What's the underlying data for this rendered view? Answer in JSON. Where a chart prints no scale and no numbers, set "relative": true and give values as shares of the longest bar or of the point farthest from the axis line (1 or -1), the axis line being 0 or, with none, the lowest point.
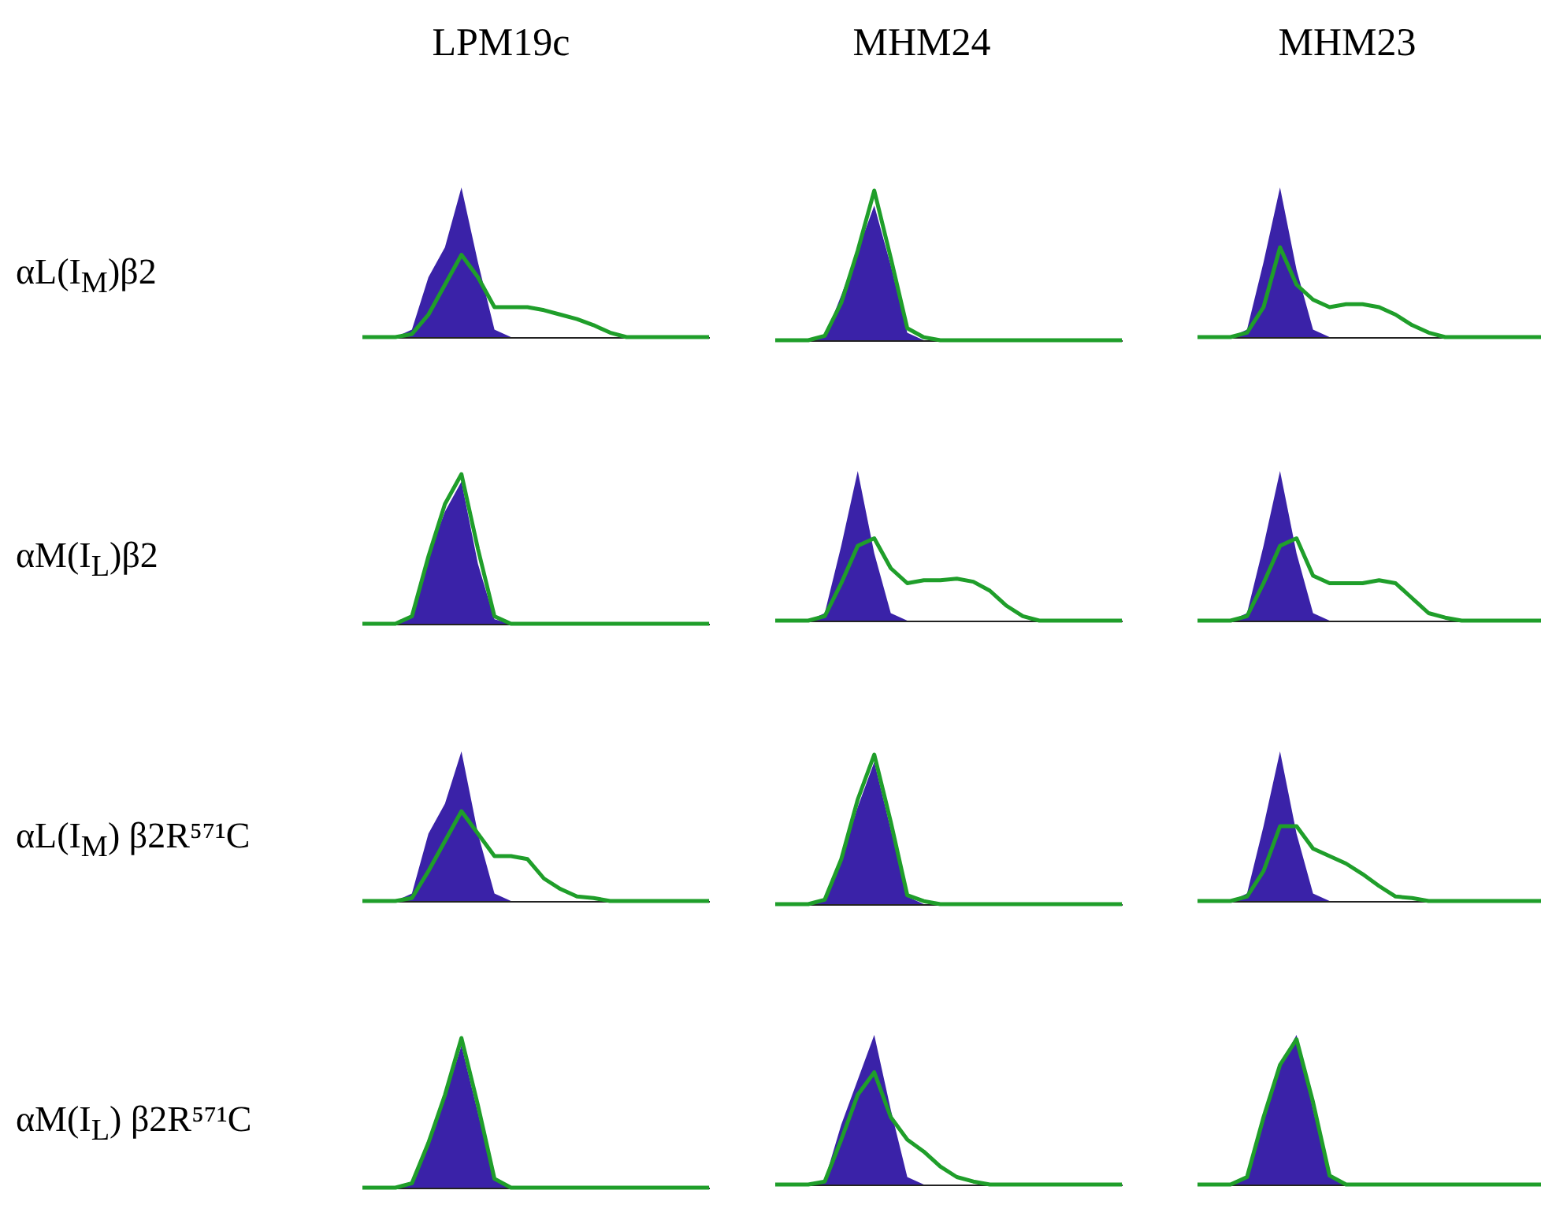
{
  "chart_data": [
    {
      "type": "area",
      "title": "LPM19c",
      "ylabel": "αL(I$_{M}$)β2",
      "relative": true,
      "tick_labels": false,
      "categories": [
        null,
        null,
        null,
        null,
        null,
        null,
        null,
        null,
        null,
        null,
        null,
        null,
        null,
        null,
        null,
        null,
        null,
        null,
        null,
        null,
        null,
        null
      ],
      "series": [
        {
          "type": "area",
          "color": "#3a22a8",
          "values": [
            0,
            0,
            0,
            0.05,
            0.4,
            0.6,
            1.0,
            0.5,
            0.05,
            0,
            0,
            0,
            0,
            0,
            0,
            0,
            0,
            0,
            0,
            0,
            0,
            0
          ]
        },
        {
          "type": "line",
          "color": "#1f9e2a",
          "values": [
            0,
            0,
            0,
            0.02,
            0.15,
            0.35,
            0.55,
            0.4,
            0.2,
            0.2,
            0.2,
            0.18,
            0.15,
            0.12,
            0.08,
            0.03,
            0,
            0,
            0,
            0,
            0,
            0
          ]
        }
      ]
    },
    {
      "type": "area",
      "title": "MHM24",
      "relative": true,
      "tick_labels": false,
      "categories": [
        null,
        null,
        null,
        null,
        null,
        null,
        null,
        null,
        null,
        null,
        null,
        null,
        null,
        null,
        null,
        null,
        null,
        null,
        null,
        null,
        null,
        null
      ],
      "series": [
        {
          "type": "area",
          "color": "#3a22a8",
          "values": [
            0,
            0,
            0,
            0.02,
            0.3,
            0.6,
            0.9,
            0.5,
            0.05,
            0,
            0,
            0,
            0,
            0,
            0,
            0,
            0,
            0,
            0,
            0,
            0,
            0
          ]
        },
        {
          "type": "line",
          "color": "#1f9e2a",
          "values": [
            0,
            0,
            0,
            0.03,
            0.25,
            0.6,
            1.0,
            0.55,
            0.08,
            0.02,
            0,
            0,
            0,
            0,
            0,
            0,
            0,
            0,
            0,
            0,
            0,
            0
          ]
        }
      ]
    },
    {
      "type": "area",
      "title": "MHM23",
      "relative": true,
      "tick_labels": false,
      "categories": [
        null,
        null,
        null,
        null,
        null,
        null,
        null,
        null,
        null,
        null,
        null,
        null,
        null,
        null,
        null,
        null,
        null,
        null,
        null,
        null,
        null,
        null
      ],
      "series": [
        {
          "type": "area",
          "color": "#3a22a8",
          "values": [
            0,
            0,
            0,
            0.05,
            0.5,
            1.0,
            0.45,
            0.05,
            0,
            0,
            0,
            0,
            0,
            0,
            0,
            0,
            0,
            0,
            0,
            0,
            0,
            0
          ]
        },
        {
          "type": "line",
          "color": "#1f9e2a",
          "values": [
            0,
            0,
            0,
            0.03,
            0.2,
            0.6,
            0.35,
            0.25,
            0.2,
            0.22,
            0.22,
            0.2,
            0.15,
            0.08,
            0.03,
            0,
            0,
            0,
            0,
            0,
            0,
            0
          ]
        }
      ]
    },
    {
      "type": "area",
      "ylabel": "αM(I$_{L}$)β2",
      "relative": true,
      "tick_labels": false,
      "categories": [
        null,
        null,
        null,
        null,
        null,
        null,
        null,
        null,
        null,
        null,
        null,
        null,
        null,
        null,
        null,
        null,
        null,
        null,
        null,
        null,
        null,
        null
      ],
      "series": [
        {
          "type": "area",
          "color": "#3a22a8",
          "values": [
            0,
            0,
            0,
            0.05,
            0.45,
            0.75,
            0.95,
            0.4,
            0.03,
            0,
            0,
            0,
            0,
            0,
            0,
            0,
            0,
            0,
            0,
            0,
            0,
            0
          ]
        },
        {
          "type": "line",
          "color": "#1f9e2a",
          "values": [
            0,
            0,
            0,
            0.05,
            0.45,
            0.8,
            1.0,
            0.5,
            0.05,
            0,
            0,
            0,
            0,
            0,
            0,
            0,
            0,
            0,
            0,
            0,
            0,
            0
          ]
        }
      ]
    },
    {
      "type": "area",
      "relative": true,
      "tick_labels": false,
      "categories": [
        null,
        null,
        null,
        null,
        null,
        null,
        null,
        null,
        null,
        null,
        null,
        null,
        null,
        null,
        null,
        null,
        null,
        null,
        null,
        null,
        null,
        null
      ],
      "series": [
        {
          "type": "area",
          "color": "#3a22a8",
          "values": [
            0,
            0,
            0,
            0.05,
            0.5,
            1.0,
            0.45,
            0.05,
            0,
            0,
            0,
            0,
            0,
            0,
            0,
            0,
            0,
            0,
            0,
            0,
            0,
            0
          ]
        },
        {
          "type": "line",
          "color": "#1f9e2a",
          "values": [
            0,
            0,
            0,
            0.03,
            0.25,
            0.5,
            0.55,
            0.35,
            0.25,
            0.27,
            0.27,
            0.28,
            0.26,
            0.2,
            0.1,
            0.03,
            0,
            0,
            0,
            0,
            0,
            0
          ]
        }
      ]
    },
    {
      "type": "area",
      "relative": true,
      "tick_labels": false,
      "categories": [
        null,
        null,
        null,
        null,
        null,
        null,
        null,
        null,
        null,
        null,
        null,
        null,
        null,
        null,
        null,
        null,
        null,
        null,
        null,
        null,
        null,
        null
      ],
      "series": [
        {
          "type": "area",
          "color": "#3a22a8",
          "values": [
            0,
            0,
            0,
            0.05,
            0.5,
            1.0,
            0.45,
            0.05,
            0,
            0,
            0,
            0,
            0,
            0,
            0,
            0,
            0,
            0,
            0,
            0,
            0,
            0
          ]
        },
        {
          "type": "line",
          "color": "#1f9e2a",
          "values": [
            0,
            0,
            0,
            0.03,
            0.25,
            0.5,
            0.55,
            0.3,
            0.25,
            0.25,
            0.25,
            0.27,
            0.25,
            0.15,
            0.05,
            0.02,
            0,
            0,
            0,
            0,
            0,
            0
          ]
        }
      ]
    },
    {
      "type": "area",
      "ylabel": "αL(I$_{M}$) β2R⁵⁷¹C",
      "relative": true,
      "tick_labels": false,
      "categories": [
        null,
        null,
        null,
        null,
        null,
        null,
        null,
        null,
        null,
        null,
        null,
        null,
        null,
        null,
        null,
        null,
        null,
        null,
        null,
        null,
        null,
        null
      ],
      "series": [
        {
          "type": "area",
          "color": "#3a22a8",
          "values": [
            0,
            0,
            0,
            0.05,
            0.45,
            0.65,
            1.0,
            0.45,
            0.05,
            0,
            0,
            0,
            0,
            0,
            0,
            0,
            0,
            0,
            0,
            0,
            0,
            0
          ]
        },
        {
          "type": "line",
          "color": "#1f9e2a",
          "values": [
            0,
            0,
            0,
            0.02,
            0.2,
            0.4,
            0.6,
            0.45,
            0.3,
            0.3,
            0.28,
            0.15,
            0.08,
            0.03,
            0.02,
            0,
            0,
            0,
            0,
            0,
            0,
            0
          ]
        }
      ]
    },
    {
      "type": "area",
      "relative": true,
      "tick_labels": false,
      "categories": [
        null,
        null,
        null,
        null,
        null,
        null,
        null,
        null,
        null,
        null,
        null,
        null,
        null,
        null,
        null,
        null,
        null,
        null,
        null,
        null,
        null,
        null
      ],
      "series": [
        {
          "type": "area",
          "color": "#3a22a8",
          "values": [
            0,
            0,
            0,
            0.03,
            0.3,
            0.65,
            0.95,
            0.5,
            0.05,
            0,
            0,
            0,
            0,
            0,
            0,
            0,
            0,
            0,
            0,
            0,
            0,
            0
          ]
        },
        {
          "type": "line",
          "color": "#1f9e2a",
          "values": [
            0,
            0,
            0,
            0.03,
            0.3,
            0.7,
            1.0,
            0.55,
            0.06,
            0.02,
            0,
            0,
            0,
            0,
            0,
            0,
            0,
            0,
            0,
            0,
            0,
            0
          ]
        }
      ]
    },
    {
      "type": "area",
      "relative": true,
      "tick_labels": false,
      "categories": [
        null,
        null,
        null,
        null,
        null,
        null,
        null,
        null,
        null,
        null,
        null,
        null,
        null,
        null,
        null,
        null,
        null,
        null,
        null,
        null,
        null,
        null
      ],
      "series": [
        {
          "type": "area",
          "color": "#3a22a8",
          "values": [
            0,
            0,
            0,
            0.05,
            0.5,
            1.0,
            0.45,
            0.05,
            0,
            0,
            0,
            0,
            0,
            0,
            0,
            0,
            0,
            0,
            0,
            0,
            0,
            0
          ]
        },
        {
          "type": "line",
          "color": "#1f9e2a",
          "values": [
            0,
            0,
            0,
            0.03,
            0.2,
            0.5,
            0.5,
            0.35,
            0.3,
            0.25,
            0.18,
            0.1,
            0.03,
            0.02,
            0,
            0,
            0,
            0,
            0,
            0,
            0,
            0
          ]
        }
      ]
    },
    {
      "type": "area",
      "ylabel": "αM(I$_{L}$) β2R⁵⁷¹C",
      "relative": true,
      "tick_labels": false,
      "categories": [
        null,
        null,
        null,
        null,
        null,
        null,
        null,
        null,
        null,
        null,
        null,
        null,
        null,
        null,
        null,
        null,
        null,
        null,
        null,
        null,
        null,
        null
      ],
      "series": [
        {
          "type": "area",
          "color": "#3a22a8",
          "values": [
            0,
            0,
            0,
            0.03,
            0.3,
            0.6,
            0.95,
            0.5,
            0.05,
            0,
            0,
            0,
            0,
            0,
            0,
            0,
            0,
            0,
            0,
            0,
            0,
            0
          ]
        },
        {
          "type": "line",
          "color": "#1f9e2a",
          "values": [
            0,
            0,
            0,
            0.03,
            0.3,
            0.62,
            1.0,
            0.55,
            0.06,
            0,
            0,
            0,
            0,
            0,
            0,
            0,
            0,
            0,
            0,
            0,
            0,
            0
          ]
        }
      ]
    },
    {
      "type": "area",
      "relative": true,
      "tick_labels": false,
      "categories": [
        null,
        null,
        null,
        null,
        null,
        null,
        null,
        null,
        null,
        null,
        null,
        null,
        null,
        null,
        null,
        null,
        null,
        null,
        null,
        null,
        null,
        null
      ],
      "series": [
        {
          "type": "area",
          "color": "#3a22a8",
          "values": [
            0,
            0,
            0,
            0.03,
            0.4,
            0.7,
            1.0,
            0.5,
            0.05,
            0,
            0,
            0,
            0,
            0,
            0,
            0,
            0,
            0,
            0,
            0,
            0,
            0
          ]
        },
        {
          "type": "line",
          "color": "#1f9e2a",
          "values": [
            0,
            0,
            0,
            0.02,
            0.3,
            0.6,
            0.75,
            0.45,
            0.3,
            0.22,
            0.12,
            0.05,
            0.02,
            0,
            0,
            0,
            0,
            0,
            0,
            0,
            0,
            0
          ]
        }
      ]
    },
    {
      "type": "area",
      "relative": true,
      "tick_labels": false,
      "categories": [
        null,
        null,
        null,
        null,
        null,
        null,
        null,
        null,
        null,
        null,
        null,
        null,
        null,
        null,
        null,
        null,
        null,
        null,
        null,
        null,
        null,
        null
      ],
      "series": [
        {
          "type": "area",
          "color": "#3a22a8",
          "values": [
            0,
            0,
            0,
            0.05,
            0.45,
            0.8,
            1.0,
            0.5,
            0.05,
            0,
            0,
            0,
            0,
            0,
            0,
            0,
            0,
            0,
            0,
            0,
            0,
            0
          ]
        },
        {
          "type": "line",
          "color": "#1f9e2a",
          "values": [
            0,
            0,
            0,
            0.05,
            0.45,
            0.8,
            0.97,
            0.55,
            0.06,
            0,
            0,
            0,
            0,
            0,
            0,
            0,
            0,
            0,
            0,
            0,
            0,
            0
          ]
        }
      ]
    }
  ]
}
